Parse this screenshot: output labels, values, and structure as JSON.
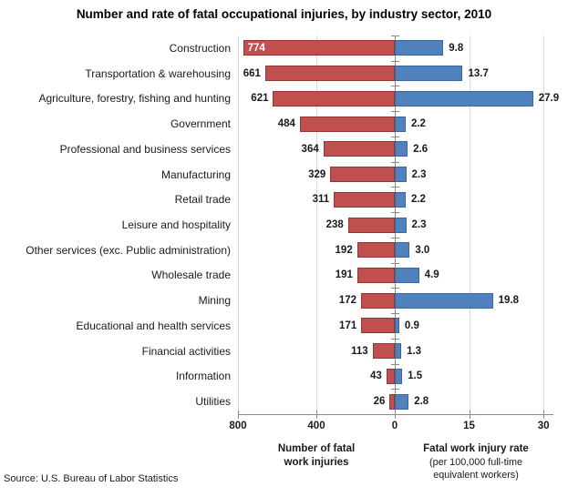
{
  "title": "Number and rate of fatal occupational injuries, by industry sector, 2010",
  "source_note": "Source: U.S. Bureau of Labor Statistics",
  "colors": {
    "count_bar_fill": "#C0504D",
    "count_bar_border": "#943634",
    "rate_bar_fill": "#4F81BD",
    "rate_bar_border": "#3A679C",
    "gridline": "#D9D9D9",
    "axis_line": "#8A8A8A",
    "text": "#1A1A1A",
    "inside_label": "#FFFFFF"
  },
  "chart_data": {
    "type": "bar",
    "subtype": "diverging-horizontal",
    "title": "Number and rate of fatal occupational injuries, by industry sector, 2010",
    "grid": true,
    "legend": "none",
    "categories": [
      "Construction",
      "Transportation & warehousing",
      "Agriculture, forestry, fishing and hunting",
      "Government",
      "Professional and business services",
      "Manufacturing",
      "Retail trade",
      "Leisure and hospitality",
      "Other services (exc. Public administration)",
      "Wholesale trade",
      "Mining",
      "Educational and health services",
      "Financial activities",
      "Information",
      "Utilities"
    ],
    "series": [
      {
        "name": "Number of fatal work injuries",
        "side": "left",
        "values": [
          774,
          661,
          621,
          484,
          364,
          329,
          311,
          238,
          192,
          191,
          172,
          171,
          113,
          43,
          26
        ],
        "value_labels": [
          "774",
          "661",
          "621",
          "484",
          "364",
          "329",
          "311",
          "238",
          "192",
          "191",
          "172",
          "171",
          "113",
          "43",
          "26"
        ],
        "axis": {
          "ticks": [
            "800",
            "400",
            "0"
          ],
          "max": 800
        }
      },
      {
        "name": "Fatal work injury rate",
        "side": "right",
        "values": [
          9.8,
          13.7,
          27.9,
          2.2,
          2.6,
          2.3,
          2.2,
          2.3,
          3.0,
          4.9,
          19.8,
          0.9,
          1.3,
          1.5,
          2.8
        ],
        "value_labels": [
          "9.8",
          "13.7",
          "27.9",
          "2.2",
          "2.6",
          "2.3",
          "2.2",
          "2.3",
          "3.0",
          "4.9",
          "19.8",
          "0.9",
          "1.3",
          "1.5",
          "2.8"
        ],
        "axis": {
          "ticks": [
            "15",
            "30"
          ],
          "max": 30
        }
      }
    ],
    "left_axis_title_lines": [
      "Number of fatal",
      "work injuries"
    ],
    "right_axis_title": "Fatal work injury rate",
    "right_axis_subtitle_lines": [
      "(per 100,000 full-time",
      "equivalent workers)"
    ]
  }
}
